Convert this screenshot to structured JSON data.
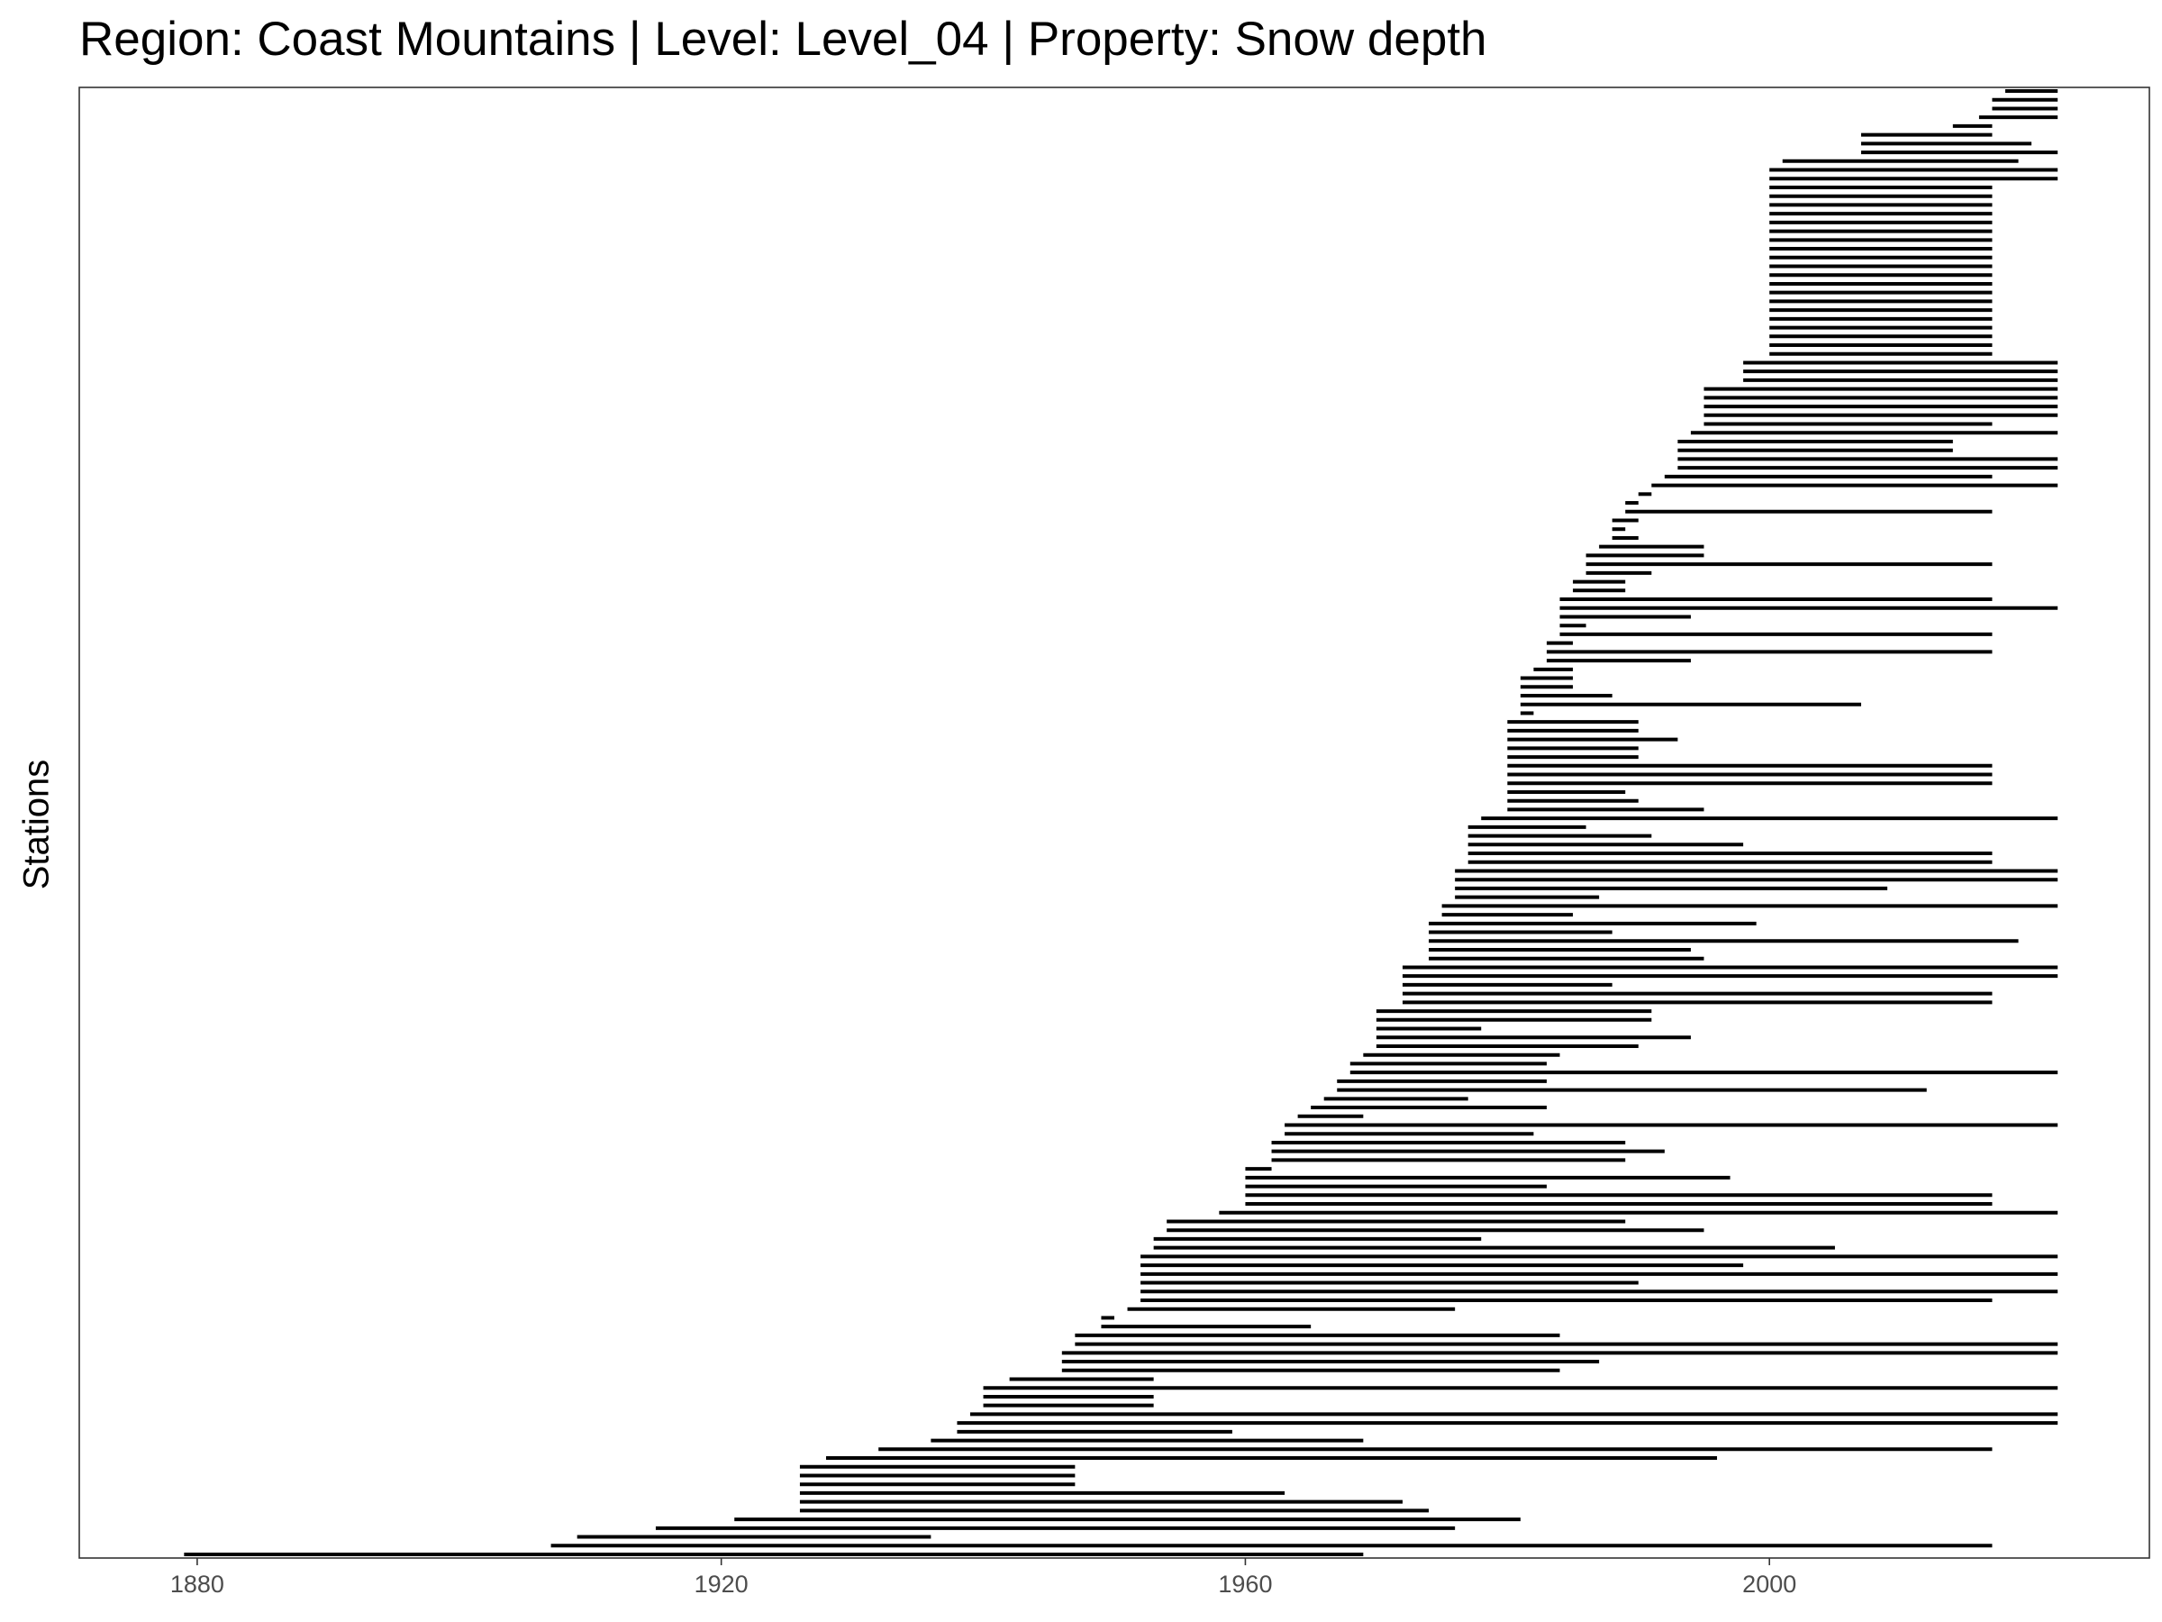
{
  "chart_data": {
    "type": "timeline",
    "title": "Region: Coast Mountains | Level: Level_04 | Property: Snow depth",
    "ylabel": "Stations",
    "xlabel": "",
    "xlim": [
      1871,
      2029
    ],
    "x_ticks": [
      1880,
      1920,
      1960,
      2000
    ],
    "grid": false,
    "legend": "none",
    "bar_color": "#000000",
    "stations": [
      [
        2018,
        2022
      ],
      [
        2017,
        2022
      ],
      [
        2017,
        2022
      ],
      [
        2016,
        2022
      ],
      [
        2014,
        2017
      ],
      [
        2007,
        2017
      ],
      [
        2007,
        2020
      ],
      [
        2007,
        2022
      ],
      [
        2001,
        2019
      ],
      [
        2000,
        2022
      ],
      [
        2000,
        2022
      ],
      [
        2000,
        2017
      ],
      [
        2000,
        2017
      ],
      [
        2000,
        2017
      ],
      [
        2000,
        2017
      ],
      [
        2000,
        2017
      ],
      [
        2000,
        2017
      ],
      [
        2000,
        2017
      ],
      [
        2000,
        2017
      ],
      [
        2000,
        2017
      ],
      [
        2000,
        2017
      ],
      [
        2000,
        2017
      ],
      [
        2000,
        2017
      ],
      [
        2000,
        2017
      ],
      [
        2000,
        2017
      ],
      [
        2000,
        2017
      ],
      [
        2000,
        2017
      ],
      [
        2000,
        2017
      ],
      [
        2000,
        2017
      ],
      [
        2000,
        2017
      ],
      [
        2000,
        2017
      ],
      [
        1998,
        2022
      ],
      [
        1998,
        2022
      ],
      [
        1998,
        2022
      ],
      [
        1995,
        2022
      ],
      [
        1995,
        2022
      ],
      [
        1995,
        2022
      ],
      [
        1995,
        2022
      ],
      [
        1995,
        2017
      ],
      [
        1994,
        2022
      ],
      [
        1993,
        2014
      ],
      [
        1993,
        2014
      ],
      [
        1993,
        2022
      ],
      [
        1993,
        2022
      ],
      [
        1992,
        2017
      ],
      [
        1991,
        2022
      ],
      [
        1990,
        1991
      ],
      [
        1989,
        1990
      ],
      [
        1989,
        2017
      ],
      [
        1988,
        1990
      ],
      [
        1988,
        1989
      ],
      [
        1988,
        1990
      ],
      [
        1987,
        1995
      ],
      [
        1986,
        1995
      ],
      [
        1986,
        2017
      ],
      [
        1986,
        1991
      ],
      [
        1985,
        1989
      ],
      [
        1985,
        1989
      ],
      [
        1984,
        2017
      ],
      [
        1984,
        2022
      ],
      [
        1984,
        1994
      ],
      [
        1984,
        1986
      ],
      [
        1984,
        2017
      ],
      [
        1983,
        1985
      ],
      [
        1983,
        2017
      ],
      [
        1983,
        1994
      ],
      [
        1982,
        1985
      ],
      [
        1981,
        1985
      ],
      [
        1981,
        1985
      ],
      [
        1981,
        1988
      ],
      [
        1981,
        2007
      ],
      [
        1981,
        1982
      ],
      [
        1980,
        1990
      ],
      [
        1980,
        1990
      ],
      [
        1980,
        1993
      ],
      [
        1980,
        1990
      ],
      [
        1980,
        1990
      ],
      [
        1980,
        2017
      ],
      [
        1980,
        2017
      ],
      [
        1980,
        2017
      ],
      [
        1980,
        1989
      ],
      [
        1980,
        1990
      ],
      [
        1980,
        1995
      ],
      [
        1978,
        2022
      ],
      [
        1977,
        1986
      ],
      [
        1977,
        1991
      ],
      [
        1977,
        1998
      ],
      [
        1977,
        2017
      ],
      [
        1977,
        2017
      ],
      [
        1976,
        2022
      ],
      [
        1976,
        2022
      ],
      [
        1976,
        2009
      ],
      [
        1976,
        1987
      ],
      [
        1975,
        2022
      ],
      [
        1975,
        1985
      ],
      [
        1974,
        1999
      ],
      [
        1974,
        1988
      ],
      [
        1974,
        2019
      ],
      [
        1974,
        1994
      ],
      [
        1974,
        1995
      ],
      [
        1972,
        2022
      ],
      [
        1972,
        2022
      ],
      [
        1972,
        1988
      ],
      [
        1972,
        2017
      ],
      [
        1972,
        2017
      ],
      [
        1970,
        1991
      ],
      [
        1970,
        1991
      ],
      [
        1970,
        1978
      ],
      [
        1970,
        1994
      ],
      [
        1970,
        1990
      ],
      [
        1969,
        1984
      ],
      [
        1968,
        1983
      ],
      [
        1968,
        2022
      ],
      [
        1967,
        1983
      ],
      [
        1967,
        2012
      ],
      [
        1966,
        1977
      ],
      [
        1965,
        1983
      ],
      [
        1964,
        1969
      ],
      [
        1963,
        2022
      ],
      [
        1963,
        1982
      ],
      [
        1962,
        1989
      ],
      [
        1962,
        1992
      ],
      [
        1962,
        1989
      ],
      [
        1960,
        1962
      ],
      [
        1960,
        1997
      ],
      [
        1960,
        1983
      ],
      [
        1960,
        2017
      ],
      [
        1960,
        2017
      ],
      [
        1958,
        2022
      ],
      [
        1954,
        1989
      ],
      [
        1954,
        1995
      ],
      [
        1953,
        1978
      ],
      [
        1953,
        2005
      ],
      [
        1952,
        2022
      ],
      [
        1952,
        1998
      ],
      [
        1952,
        2022
      ],
      [
        1952,
        1990
      ],
      [
        1952,
        2022
      ],
      [
        1952,
        2017
      ],
      [
        1951,
        1976
      ],
      [
        1949,
        1950
      ],
      [
        1949,
        1965
      ],
      [
        1947,
        1984
      ],
      [
        1947,
        2022
      ],
      [
        1946,
        2022
      ],
      [
        1946,
        1987
      ],
      [
        1946,
        1984
      ],
      [
        1942,
        1953
      ],
      [
        1940,
        2022
      ],
      [
        1940,
        1953
      ],
      [
        1940,
        1953
      ],
      [
        1939,
        2022
      ],
      [
        1938,
        2022
      ],
      [
        1938,
        1959
      ],
      [
        1936,
        1969
      ],
      [
        1932,
        2017
      ],
      [
        1928,
        1996
      ],
      [
        1926,
        1947
      ],
      [
        1926,
        1947
      ],
      [
        1926,
        1947
      ],
      [
        1926,
        1963
      ],
      [
        1926,
        1972
      ],
      [
        1926,
        1974
      ],
      [
        1921,
        1981
      ],
      [
        1915,
        1976
      ],
      [
        1909,
        1936
      ],
      [
        1907,
        2017
      ],
      [
        1879,
        1969
      ]
    ]
  }
}
